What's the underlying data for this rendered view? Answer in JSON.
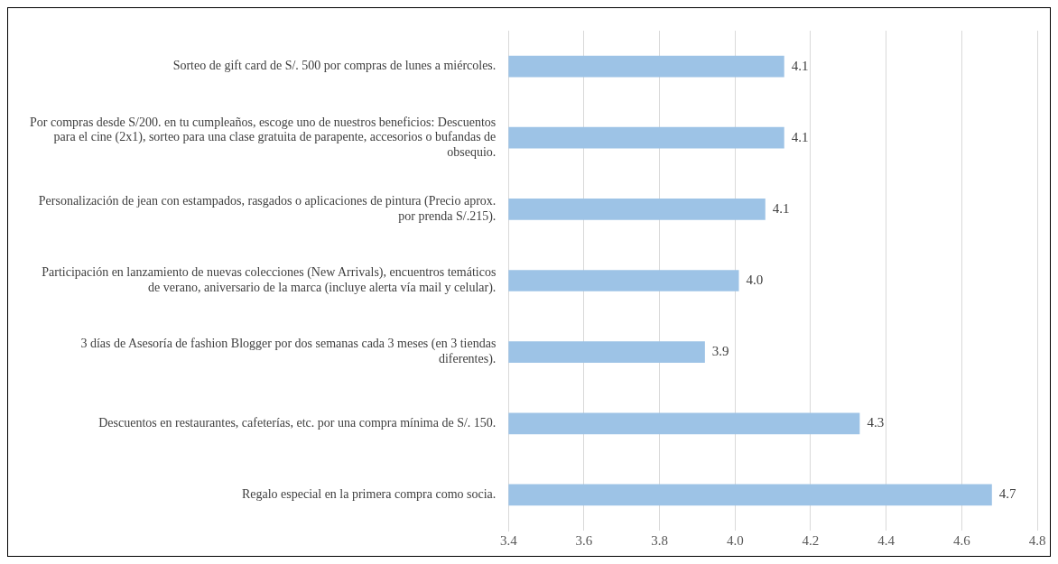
{
  "chart_data": {
    "type": "bar",
    "orientation": "horizontal",
    "categories": [
      "Sorteo de gift card de S/. 500 por compras de lunes a miércoles.",
      "Por compras desde S/200. en tu cumpleaños, escoge uno de nuestros beneficios: Descuentos para el cine (2x1), sorteo para una clase gratuita de parapente, accesorios o bufandas de obsequio.",
      "Personalización de jean con estampados, rasgados o aplicaciones de pintura (Precio aprox. por prenda S/.215).",
      "Participación en lanzamiento de nuevas colecciones (New Arrivals), encuentros temáticos de verano, aniversario de la marca (incluye alerta vía mail y celular).",
      "3 días de Asesoría de fashion Blogger por dos semanas cada 3 meses (en 3 tiendas diferentes).",
      "Descuentos en restaurantes, cafeterías, etc. por una compra mínima de S/. 150.",
      "Regalo especial en la primera compra como socia."
    ],
    "values": [
      4.13,
      4.13,
      4.08,
      4.01,
      3.92,
      4.33,
      4.68
    ],
    "value_labels": [
      "4.1",
      "4.1",
      "4.1",
      "4.0",
      "3.9",
      "4.3",
      "4.7"
    ],
    "color": "#9dc3e6",
    "xlim": [
      3.4,
      4.8
    ],
    "xticks": [
      3.4,
      3.6,
      3.8,
      {
        "value": 4,
        "label": "4.0"
      },
      4.2,
      4.4,
      4.6,
      4.8
    ],
    "grid": "x",
    "legend": false
  }
}
